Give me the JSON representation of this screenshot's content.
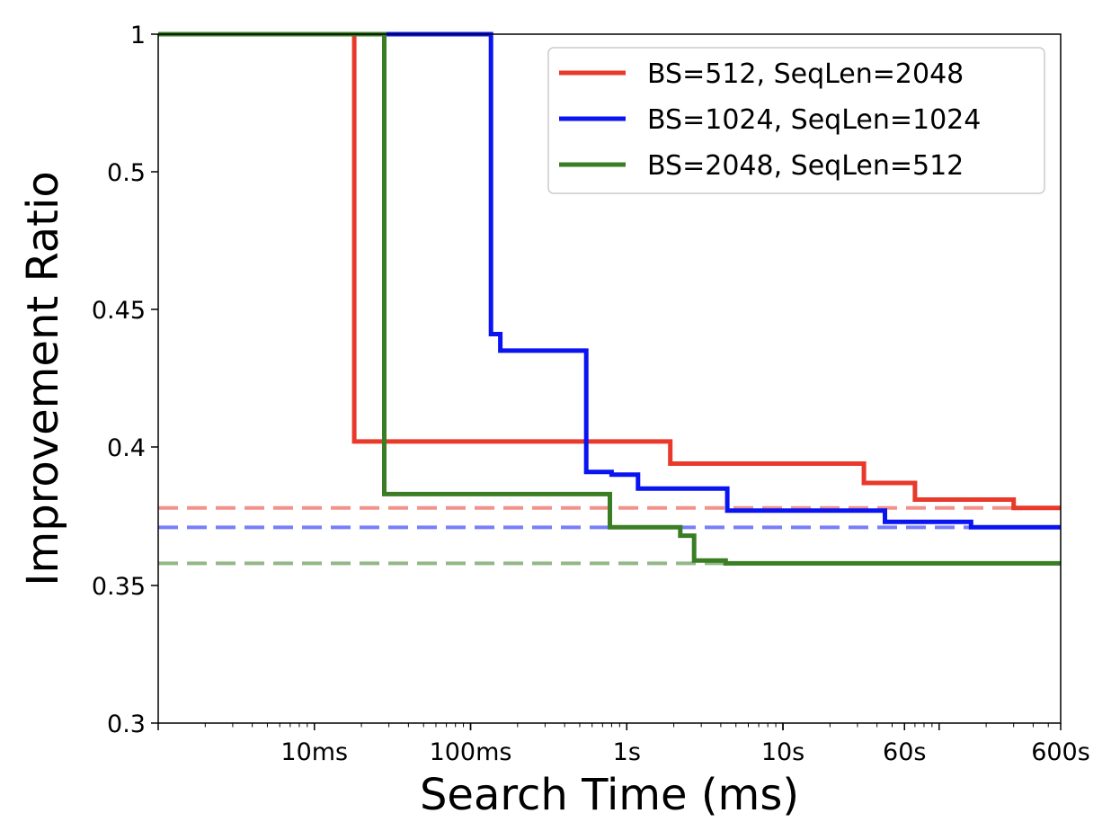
{
  "chart_data": {
    "type": "line",
    "xlabel": "Search Time (ms)",
    "ylabel": "Improvement Ratio",
    "x_scale": "log",
    "x_unit": "ms",
    "xlim": [
      1,
      600000
    ],
    "ylim": [
      0.3,
      1
    ],
    "y_ticks": [
      {
        "value": 0.3,
        "label": "0.3"
      },
      {
        "value": 0.35,
        "label": "0.35"
      },
      {
        "value": 0.4,
        "label": "0.4"
      },
      {
        "value": 0.45,
        "label": "0.45"
      },
      {
        "value": 0.5,
        "label": "0.5"
      },
      {
        "value": 1,
        "label": "1"
      }
    ],
    "x_ticks": [
      {
        "value": 10,
        "label": "10ms"
      },
      {
        "value": 100,
        "label": "100ms"
      },
      {
        "value": 1000,
        "label": "1s"
      },
      {
        "value": 10000,
        "label": "10s"
      },
      {
        "value": 60000,
        "label": "60s"
      },
      {
        "value": 600000,
        "label": "600s"
      }
    ],
    "grid": false,
    "legend_position": "top-right",
    "series": [
      {
        "name": "BS=512, SeqLen=2048",
        "color": "#e8392a",
        "step": "post",
        "x": [
          1,
          18,
          1900,
          33000,
          70000,
          300000,
          600000
        ],
        "y": [
          1,
          0.402,
          0.394,
          0.387,
          0.381,
          0.378,
          0.378
        ],
        "baseline": 0.378
      },
      {
        "name": "BS=1024, SeqLen=1024",
        "color": "#0a14f0",
        "step": "post",
        "x": [
          1,
          135,
          155,
          550,
          800,
          1180,
          4400,
          45000,
          160000,
          600000
        ],
        "y": [
          1,
          0.441,
          0.435,
          0.391,
          0.39,
          0.385,
          0.377,
          0.373,
          0.371,
          0.371
        ],
        "baseline": 0.371
      },
      {
        "name": "BS=2048, SeqLen=512",
        "color": "#3a7d24",
        "step": "post",
        "x": [
          1,
          28,
          780,
          2200,
          2700,
          4300,
          600000
        ],
        "y": [
          1,
          0.383,
          0.371,
          0.368,
          0.359,
          0.358,
          0.358
        ],
        "baseline": 0.358
      }
    ]
  }
}
